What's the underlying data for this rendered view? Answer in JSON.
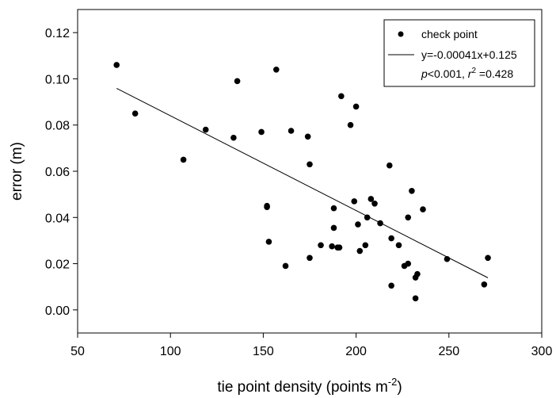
{
  "chart_data": {
    "type": "scatter",
    "xlabel": "tie point density (points m",
    "xlabel_superscript": "-2",
    "xlabel_suffix": ")",
    "ylabel": "error (m)",
    "xlim": [
      50,
      300
    ],
    "ylim": [
      -0.01,
      0.13
    ],
    "x_ticks": [
      50,
      100,
      150,
      200,
      250,
      300
    ],
    "x_tick_labels": [
      "50",
      "100",
      "150",
      "200",
      "250",
      "300"
    ],
    "y_ticks": [
      0.0,
      0.02,
      0.04,
      0.06,
      0.08,
      0.1,
      0.12
    ],
    "y_tick_labels": [
      "0.00",
      "0.02",
      "0.04",
      "0.06",
      "0.08",
      "0.10",
      "0.12"
    ],
    "grid": false,
    "legend_position": "top-right",
    "series": [
      {
        "name": "check point",
        "marker": "filled-circle",
        "color": "#000000",
        "points": [
          [
            71,
            0.106
          ],
          [
            81,
            0.085
          ],
          [
            107,
            0.065
          ],
          [
            119,
            0.078
          ],
          [
            134,
            0.0745
          ],
          [
            136,
            0.099
          ],
          [
            149,
            0.077
          ],
          [
            152,
            0.045
          ],
          [
            152,
            0.0445
          ],
          [
            153,
            0.0295
          ],
          [
            157,
            0.104
          ],
          [
            162,
            0.019
          ],
          [
            165,
            0.0775
          ],
          [
            174,
            0.075
          ],
          [
            175,
            0.063
          ],
          [
            175,
            0.0225
          ],
          [
            181,
            0.028
          ],
          [
            187,
            0.0275
          ],
          [
            188,
            0.0355
          ],
          [
            188,
            0.044
          ],
          [
            190,
            0.027
          ],
          [
            191,
            0.027
          ],
          [
            192,
            0.0925
          ],
          [
            197,
            0.08
          ],
          [
            199,
            0.047
          ],
          [
            200,
            0.088
          ],
          [
            201,
            0.037
          ],
          [
            202,
            0.0255
          ],
          [
            205,
            0.028
          ],
          [
            206,
            0.04
          ],
          [
            208,
            0.048
          ],
          [
            210,
            0.046
          ],
          [
            213,
            0.0375
          ],
          [
            218,
            0.0625
          ],
          [
            219,
            0.031
          ],
          [
            219,
            0.0105
          ],
          [
            223,
            0.028
          ],
          [
            226,
            0.019
          ],
          [
            228,
            0.02
          ],
          [
            228,
            0.04
          ],
          [
            230,
            0.0515
          ],
          [
            232,
            0.014
          ],
          [
            232,
            0.005
          ],
          [
            233,
            0.0155
          ],
          [
            236,
            0.0435
          ],
          [
            249,
            0.022
          ],
          [
            269,
            0.011
          ],
          [
            271,
            0.0225
          ]
        ]
      }
    ],
    "regression": {
      "name": "y=-0.00041x+0.125",
      "slope": -0.00041,
      "intercept": 0.125,
      "x_range": [
        71,
        271
      ],
      "color": "#000000"
    },
    "legend": {
      "entries": [
        "check point",
        "y=-0.00041x+0.125"
      ],
      "stats_prefix": "<0.001, ",
      "stats_p": "p",
      "stats_r": "r",
      "stats_r_sup": "2",
      "stats_r_value": " =0.428"
    }
  }
}
